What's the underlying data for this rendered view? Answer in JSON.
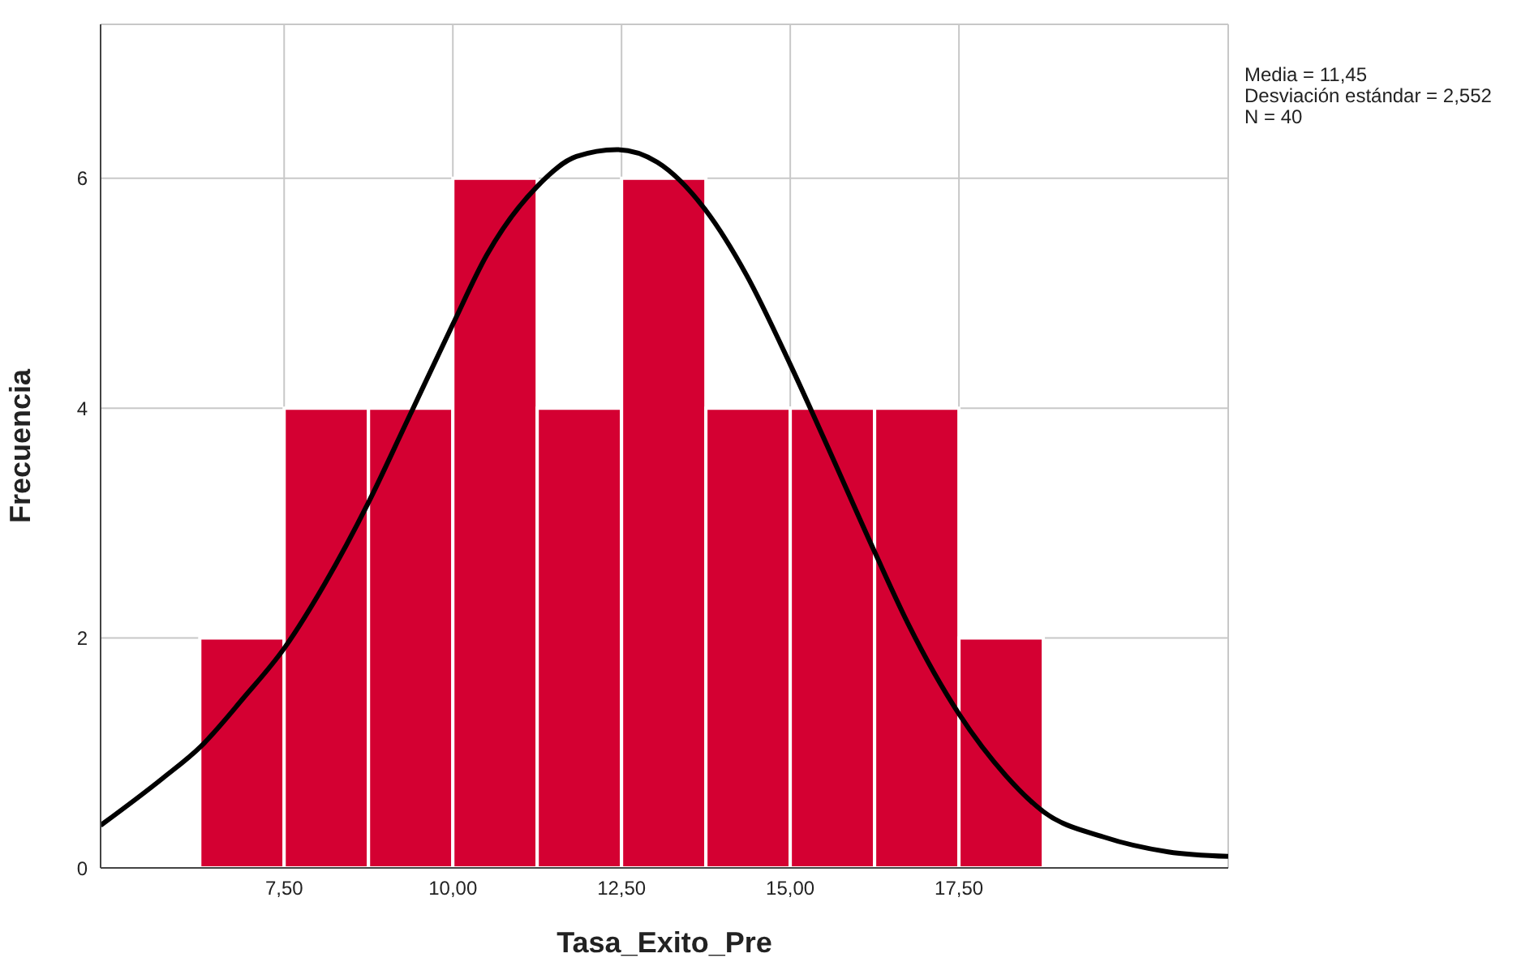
{
  "chart_data": {
    "type": "histogram",
    "xlabel": "Tasa_Exito_Pre",
    "ylabel": "Frecuencia",
    "bins": [
      6.25,
      7.5,
      8.75,
      10,
      11.25,
      12.5,
      13.75,
      15,
      16.25,
      17.5,
      18.75
    ],
    "values": [
      2,
      4,
      4,
      6,
      4,
      6,
      4,
      4,
      4,
      2
    ],
    "color": "#d40032",
    "xlim": [
      4.78,
      21.49
    ],
    "xticks": [
      {
        "value": 7.5,
        "label": "7,50"
      },
      {
        "value": 10,
        "label": "10,00"
      },
      {
        "value": 12.5,
        "label": "12,50"
      },
      {
        "value": 15,
        "label": "15,00"
      },
      {
        "value": 17.5,
        "label": "17,50"
      }
    ],
    "ylim": [
      0,
      7.34
    ],
    "yticks": [
      0,
      2,
      4,
      6
    ],
    "grid": true,
    "series": [
      {
        "type": "line",
        "color": "#000000",
        "x": [
          4.78,
          5.7,
          6.27,
          6.9,
          7.5,
          8.1,
          8.75,
          9.3,
          10,
          10.5,
          11.25,
          11.83,
          12.43,
          13.03,
          13.75,
          14.35,
          15,
          15.55,
          16.25,
          16.75,
          17.5,
          18.2,
          18.75,
          19.64,
          20.6,
          21.49
        ],
        "values": [
          0.37,
          0.78,
          1.06,
          1.48,
          1.91,
          2.47,
          3.18,
          3.86,
          4.73,
          5.33,
          5.93,
          6.19,
          6.25,
          6.14,
          5.72,
          5.16,
          4.38,
          3.67,
          2.75,
          2.12,
          1.34,
          0.8,
          0.49,
          0.27,
          0.14,
          0.1
        ]
      }
    ],
    "annotations": [
      "Media = 11,45",
      "Desviación estándar = 2,552",
      "N = 40"
    ]
  }
}
